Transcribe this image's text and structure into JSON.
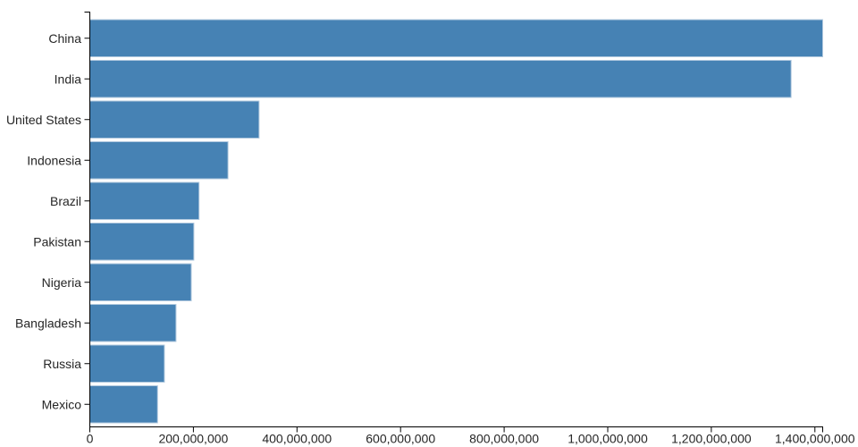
{
  "chart_data": {
    "type": "bar",
    "orientation": "horizontal",
    "title": "",
    "xlabel": "",
    "ylabel": "",
    "categories": [
      "China",
      "India",
      "United States",
      "Indonesia",
      "Brazil",
      "Pakistan",
      "Nigeria",
      "Bangladesh",
      "Russia",
      "Mexico"
    ],
    "values": [
      1415045928,
      1354051854,
      326766748,
      266794980,
      210867954,
      200813818,
      195875237,
      166368149,
      143964709,
      130759074
    ],
    "xlim": [
      0,
      1415045928
    ],
    "x_ticks": [
      0,
      200000000,
      400000000,
      600000000,
      800000000,
      1000000000,
      1200000000,
      1400000000
    ],
    "x_tick_labels": [
      "0",
      "200,000,000",
      "400,000,000",
      "600,000,000",
      "800,000,000",
      "1,000,000,000",
      "1,200,000,000",
      "1,400,000,000"
    ],
    "grid": false,
    "legend": false,
    "colors": {
      "bar_fill": "#4682b4",
      "bar_stroke": "#b0c8de",
      "axis_line": "#000000",
      "tick_text": "#262626"
    }
  }
}
